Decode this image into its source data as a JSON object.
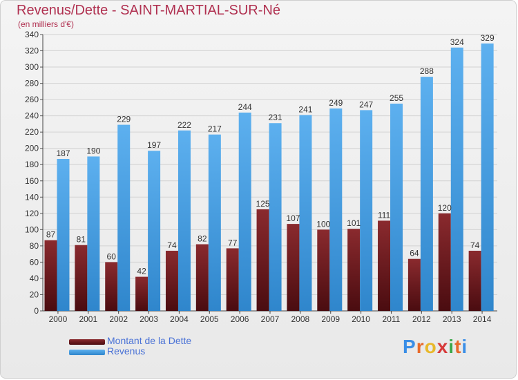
{
  "colors": {
    "debt": "#7a1f22",
    "revenue": "#4ba3e6",
    "title": "#b03050",
    "legend_text": "#4a72d6"
  },
  "chart_data": {
    "type": "bar",
    "title": "Revenus/Dette - SAINT-MARTIAL-SUR-Né",
    "subtitle": "(en milliers d'€)",
    "categories": [
      "2000",
      "2001",
      "2002",
      "2003",
      "2004",
      "2005",
      "2006",
      "2007",
      "2008",
      "2009",
      "2010",
      "2011",
      "2012",
      "2013",
      "2014"
    ],
    "series": [
      {
        "name": "Montant de la Dette",
        "values": [
          87,
          81,
          60,
          42,
          74,
          82,
          77,
          125,
          107,
          100,
          101,
          111,
          64,
          120,
          74
        ]
      },
      {
        "name": "Revenus",
        "values": [
          187,
          190,
          229,
          197,
          222,
          217,
          244,
          231,
          241,
          249,
          247,
          255,
          288,
          324,
          329
        ]
      }
    ],
    "ylim": [
      0,
      340
    ],
    "yticks": [
      0,
      20,
      40,
      60,
      80,
      100,
      120,
      140,
      160,
      180,
      200,
      220,
      240,
      260,
      280,
      300,
      320,
      340
    ],
    "grid": true,
    "legend_position": "bottom-left"
  },
  "brand": {
    "letters": [
      "P",
      "r",
      "o",
      "x",
      "i",
      "t",
      "i"
    ],
    "letter_colors": [
      "#3a8ee6",
      "#e86a2a",
      "#e8b82a",
      "#d63a3a",
      "#3aa84a",
      "#e86a2a",
      "#3a8ee6"
    ]
  }
}
